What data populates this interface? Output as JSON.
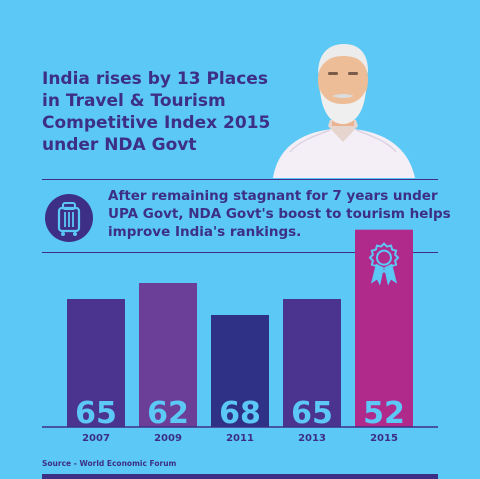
{
  "title_lines": [
    "India rises by 13 Places",
    "in Travel & Tourism",
    "Competitive Index 2015",
    "under NDA Govt"
  ],
  "subtitle_lines": [
    "After remaining stagnant for 7 years under",
    "UPA Govt, NDA Govt's boost to tourism helps",
    "improve India's rankings."
  ],
  "source": "Source - World Economic Forum",
  "icons": [
    "luggage-icon",
    "award-ribbon-icon",
    "person-portrait"
  ],
  "colors": {
    "background": "#5bc8f5",
    "text": "#3d2f86",
    "bar_2007": "#4b3490",
    "bar_2009": "#6b3f98",
    "bar_2011": "#2e3185",
    "bar_2013": "#4b3490",
    "bar_2015": "#b02a8c",
    "value_label": "#5bc8f5"
  },
  "chart_data": {
    "type": "bar",
    "categories": [
      "2007",
      "2009",
      "2011",
      "2013",
      "2015"
    ],
    "values": [
      65,
      62,
      68,
      65,
      52
    ],
    "title": "",
    "xlabel": "",
    "ylabel": "",
    "grid": false,
    "highlight": "2015"
  }
}
